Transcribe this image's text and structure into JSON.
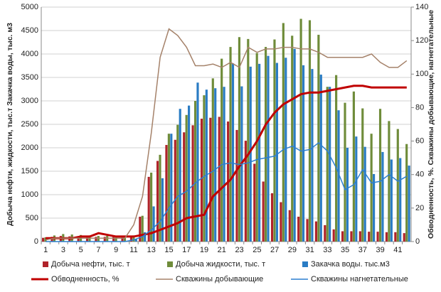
{
  "chart_data": {
    "type": "combo",
    "categories": [
      1,
      null,
      3,
      null,
      5,
      null,
      7,
      null,
      9,
      null,
      11,
      null,
      13,
      null,
      15,
      null,
      17,
      null,
      19,
      null,
      21,
      null,
      23,
      null,
      25,
      null,
      27,
      null,
      29,
      null,
      31,
      null,
      33,
      null,
      35,
      null,
      37,
      null,
      39,
      null,
      41,
      null
    ],
    "y_label": "Добыча нефти, жидкости, тыс.т Закачка воды, тыс. м3",
    "y2_label": "Обводненность, %. Скважины добывающие, нагнетательные",
    "ylim": [
      0,
      5000
    ],
    "yticks": [
      0,
      500,
      1000,
      1500,
      2000,
      2500,
      3000,
      3500,
      4000,
      4500,
      5000
    ],
    "y2lim": [
      0,
      140
    ],
    "y2ticks": [
      0,
      20,
      40,
      60,
      80,
      100,
      120,
      140
    ],
    "grid": true,
    "series": [
      {
        "name": "Добыча нефти, тыс. т",
        "type": "bar",
        "color": "#b0232a",
        "values": [
          80,
          100,
          120,
          110,
          110,
          110,
          100,
          100,
          100,
          100,
          120,
          530,
          1380,
          1720,
          2060,
          2170,
          2330,
          2480,
          2620,
          2640,
          2660,
          2560,
          2380,
          2150,
          1660,
          1280,
          1030,
          840,
          670,
          530,
          480,
          430,
          350,
          260,
          220,
          220,
          220,
          210,
          210,
          200,
          200,
          180
        ]
      },
      {
        "name": "Добыча жидкости, тыс. т",
        "type": "bar",
        "color": "#6f8c3a",
        "values": [
          90,
          130,
          160,
          150,
          140,
          130,
          120,
          120,
          120,
          110,
          130,
          550,
          1470,
          1850,
          2300,
          2490,
          2700,
          3000,
          3120,
          3480,
          3900,
          4150,
          4360,
          4320,
          4020,
          4150,
          4310,
          4660,
          4390,
          4750,
          4720,
          4410,
          3300,
          3550,
          2960,
          3200,
          2840,
          2300,
          2830,
          2570,
          2400,
          2080
        ]
      },
      {
        "name": "Закачка воды. тыс.м3",
        "type": "bar",
        "color": "#2a7cc4",
        "values": [
          0,
          0,
          0,
          0,
          0,
          0,
          0,
          0,
          0,
          0,
          50,
          200,
          750,
          1350,
          2300,
          2830,
          2900,
          3390,
          3240,
          3270,
          3300,
          3800,
          3310,
          3730,
          3790,
          3960,
          3810,
          3920,
          4110,
          3760,
          3680,
          3560,
          3300,
          2800,
          2000,
          2240,
          2020,
          1440,
          1910,
          1750,
          1780,
          1620
        ]
      },
      {
        "name": "Обводненность, %",
        "type": "line",
        "axis": "y2",
        "color": "#c00000",
        "width": 3,
        "values": [
          2,
          2,
          2,
          2,
          3,
          3,
          5,
          4,
          3,
          3,
          3,
          4,
          5,
          7,
          9,
          11,
          14,
          15,
          16,
          27,
          32,
          37,
          45,
          52,
          60,
          70,
          77,
          82,
          85,
          88,
          89,
          89,
          90,
          91,
          92,
          93,
          93,
          92,
          92,
          92,
          92,
          92
        ]
      },
      {
        "name": "Скважины добывающие",
        "type": "line",
        "axis": "y2",
        "color": "#a5826a",
        "width": 1.5,
        "values": [
          1,
          2,
          2,
          2,
          2,
          2,
          2,
          2,
          2,
          2,
          10,
          27,
          65,
          110,
          127,
          123,
          116,
          105,
          105,
          106,
          104,
          107,
          104,
          116,
          113,
          115,
          115,
          116,
          116,
          115,
          115,
          113,
          110,
          110,
          110,
          110,
          110,
          112,
          107,
          104,
          104,
          108
        ]
      },
      {
        "name": "Скважины нагнетательные",
        "type": "line",
        "axis": "y2",
        "color": "#2c7fd0",
        "width": 1.5,
        "values": [
          0,
          0,
          0,
          0,
          0,
          0,
          0,
          0,
          0,
          0,
          1,
          3,
          7,
          12,
          20,
          27,
          30,
          35,
          39,
          42,
          46,
          47,
          46,
          47,
          49,
          50,
          51,
          55,
          57,
          54,
          55,
          59,
          54,
          44,
          31,
          34,
          43,
          35,
          36,
          40,
          36,
          39
        ]
      }
    ]
  }
}
